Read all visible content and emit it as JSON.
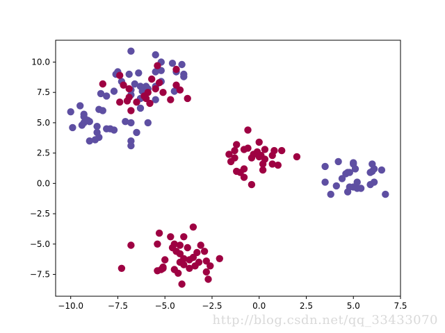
{
  "chart_data": {
    "type": "scatter",
    "xlim": [
      -10.8,
      7.5
    ],
    "ylim": [
      -9.3,
      11.8
    ],
    "x_ticks": [
      -10.0,
      -7.5,
      -5.0,
      -2.5,
      0.0,
      2.5,
      5.0,
      7.5
    ],
    "x_tick_labels": [
      "−10.0",
      "−7.5",
      "−5.0",
      "−2.5",
      "0.0",
      "2.5",
      "5.0",
      "7.5"
    ],
    "y_ticks": [
      -7.5,
      -5.0,
      -2.5,
      0.0,
      2.5,
      5.0,
      7.5,
      10.0
    ],
    "y_tick_labels": [
      "−7.5",
      "−5.0",
      "−2.5",
      "0.0",
      "2.5",
      "5.0",
      "7.5",
      "10.0"
    ],
    "grid": false,
    "legend": "none",
    "series": [
      {
        "color": "#5e4fa2",
        "points": [
          [
            -6.8,
            10.9
          ],
          [
            -5.5,
            10.6
          ],
          [
            -5.2,
            10.0
          ],
          [
            -4.6,
            9.9
          ],
          [
            -4.1,
            9.8
          ],
          [
            -7.5,
            9.2
          ],
          [
            -7.6,
            9.0
          ],
          [
            -6.9,
            9.0
          ],
          [
            -6.4,
            9.1
          ],
          [
            -5.5,
            9.2
          ],
          [
            -5.2,
            9.3
          ],
          [
            -4.4,
            9.2
          ],
          [
            -4.0,
            9.0
          ],
          [
            -4.0,
            8.8
          ],
          [
            -7.3,
            8.4
          ],
          [
            -5.2,
            8.4
          ],
          [
            -6.6,
            8.2
          ],
          [
            -6.0,
            8.0
          ],
          [
            -6.3,
            8.0
          ],
          [
            -5.9,
            7.8
          ],
          [
            -5.5,
            8.0
          ],
          [
            -6.8,
            7.7
          ],
          [
            -7.7,
            7.6
          ],
          [
            -6.2,
            7.6
          ],
          [
            -4.5,
            7.6
          ],
          [
            -8.4,
            7.4
          ],
          [
            -8.1,
            7.2
          ],
          [
            -6.8,
            7.3
          ],
          [
            -6.3,
            7.0
          ],
          [
            -5.5,
            6.9
          ],
          [
            -9.5,
            6.4
          ],
          [
            -8.5,
            6.1
          ],
          [
            -6.3,
            6.2
          ],
          [
            -8.3,
            6.0
          ],
          [
            -10.0,
            5.9
          ],
          [
            -9.3,
            5.7
          ],
          [
            -9.3,
            5.5
          ],
          [
            -9.1,
            5.2
          ],
          [
            -9.3,
            5.0
          ],
          [
            -9.0,
            5.1
          ],
          [
            -7.1,
            5.1
          ],
          [
            -6.8,
            5.0
          ],
          [
            -5.9,
            5.0
          ],
          [
            -9.4,
            4.8
          ],
          [
            -8.6,
            4.7
          ],
          [
            -9.9,
            4.6
          ],
          [
            -8.1,
            4.5
          ],
          [
            -7.9,
            4.5
          ],
          [
            -7.7,
            4.4
          ],
          [
            -8.6,
            4.2
          ],
          [
            -6.5,
            4.2
          ],
          [
            -8.5,
            3.8
          ],
          [
            -8.7,
            3.6
          ],
          [
            -9.0,
            3.5
          ],
          [
            -6.8,
            3.5
          ],
          [
            -6.8,
            3.1
          ],
          [
            3.5,
            1.4
          ],
          [
            4.2,
            1.8
          ],
          [
            5.0,
            1.7
          ],
          [
            4.6,
            0.8
          ],
          [
            4.7,
            0.9
          ],
          [
            4.8,
            0.9
          ],
          [
            5.1,
            1.2
          ],
          [
            5.0,
            1.6
          ],
          [
            6.0,
            1.6
          ],
          [
            6.1,
            1.2
          ],
          [
            6.0,
            1.0
          ],
          [
            6.5,
            1.1
          ],
          [
            5.9,
            0.9
          ],
          [
            4.4,
            0.4
          ],
          [
            3.5,
            0.1
          ],
          [
            5.2,
            0.1
          ],
          [
            4.1,
            -0.2
          ],
          [
            4.8,
            -0.3
          ],
          [
            5.0,
            -0.3
          ],
          [
            5.2,
            -0.4
          ],
          [
            5.4,
            -0.4
          ],
          [
            6.1,
            0.1
          ],
          [
            5.9,
            -0.1
          ],
          [
            4.7,
            -0.7
          ],
          [
            3.8,
            -0.9
          ],
          [
            6.7,
            -0.9
          ]
        ]
      },
      {
        "color": "#9e0142",
        "points": [
          [
            -5.4,
            9.7
          ],
          [
            -4.4,
            9.4
          ],
          [
            -7.4,
            8.9
          ],
          [
            -5.7,
            8.6
          ],
          [
            -5.3,
            8.3
          ],
          [
            -4.4,
            8.1
          ],
          [
            -8.3,
            8.2
          ],
          [
            -7.2,
            8.1
          ],
          [
            -6.9,
            7.8
          ],
          [
            -5.5,
            7.8
          ],
          [
            -4.2,
            7.7
          ],
          [
            -5.9,
            7.5
          ],
          [
            -5.1,
            7.5
          ],
          [
            -6.1,
            7.2
          ],
          [
            -6.9,
            7.1
          ],
          [
            -6.0,
            7.0
          ],
          [
            -3.8,
            7.0
          ],
          [
            -4.7,
            6.9
          ],
          [
            -7.0,
            6.8
          ],
          [
            -6.5,
            6.7
          ],
          [
            -5.8,
            6.6
          ],
          [
            -7.4,
            6.7
          ],
          [
            -6.8,
            6.0
          ],
          [
            -0.6,
            4.4
          ],
          [
            -1.2,
            3.2
          ],
          [
            0.0,
            3.4
          ],
          [
            -0.6,
            2.9
          ],
          [
            -0.8,
            2.8
          ],
          [
            0.3,
            2.8
          ],
          [
            0.8,
            2.7
          ],
          [
            -1.3,
            2.7
          ],
          [
            -0.1,
            2.6
          ],
          [
            1.2,
            2.7
          ],
          [
            -1.6,
            2.4
          ],
          [
            -0.3,
            2.4
          ],
          [
            0.1,
            2.3
          ],
          [
            0.7,
            2.3
          ],
          [
            -1.3,
            2.1
          ],
          [
            -0.4,
            2.1
          ],
          [
            0.0,
            2.2
          ],
          [
            0.3,
            2.0
          ],
          [
            2.0,
            2.2
          ],
          [
            -1.5,
            1.8
          ],
          [
            0.2,
            1.6
          ],
          [
            1.0,
            1.5
          ],
          [
            0.7,
            1.6
          ],
          [
            -0.8,
            1.2
          ],
          [
            -1.2,
            1.0
          ],
          [
            0.2,
            1.1
          ],
          [
            -1.0,
            0.9
          ],
          [
            -0.4,
            -0.1
          ],
          [
            -0.8,
            0.5
          ],
          [
            -3.5,
            -3.6
          ],
          [
            -5.3,
            -4.1
          ],
          [
            -6.8,
            -5.1
          ],
          [
            -5.4,
            -5.0
          ],
          [
            -4.7,
            -4.4
          ],
          [
            -4.0,
            -4.4
          ],
          [
            -4.5,
            -5.0
          ],
          [
            -3.8,
            -5.3
          ],
          [
            -4.6,
            -5.3
          ],
          [
            -4.2,
            -5.1
          ],
          [
            -3.1,
            -5.1
          ],
          [
            -4.4,
            -5.6
          ],
          [
            -2.9,
            -5.6
          ],
          [
            -3.3,
            -5.7
          ],
          [
            -4.2,
            -5.8
          ],
          [
            -3.5,
            -6.1
          ],
          [
            -4.0,
            -6.2
          ],
          [
            -3.7,
            -6.3
          ],
          [
            -2.1,
            -6.2
          ],
          [
            -5.0,
            -6.3
          ],
          [
            -2.8,
            -6.4
          ],
          [
            -3.2,
            -6.5
          ],
          [
            -4.2,
            -6.5
          ],
          [
            -4.0,
            -6.7
          ],
          [
            -2.6,
            -6.8
          ],
          [
            -3.4,
            -6.8
          ],
          [
            -5.1,
            -6.9
          ],
          [
            -7.3,
            -7.0
          ],
          [
            -5.1,
            -7.0
          ],
          [
            -3.7,
            -7.0
          ],
          [
            -5.2,
            -7.1
          ],
          [
            -4.5,
            -7.1
          ],
          [
            -5.4,
            -7.2
          ],
          [
            -2.8,
            -7.3
          ],
          [
            -4.3,
            -7.4
          ],
          [
            -2.7,
            -7.9
          ],
          [
            -4.1,
            -8.3
          ]
        ]
      }
    ]
  },
  "watermark": "http://blog.csdn.net/qq_33433070"
}
